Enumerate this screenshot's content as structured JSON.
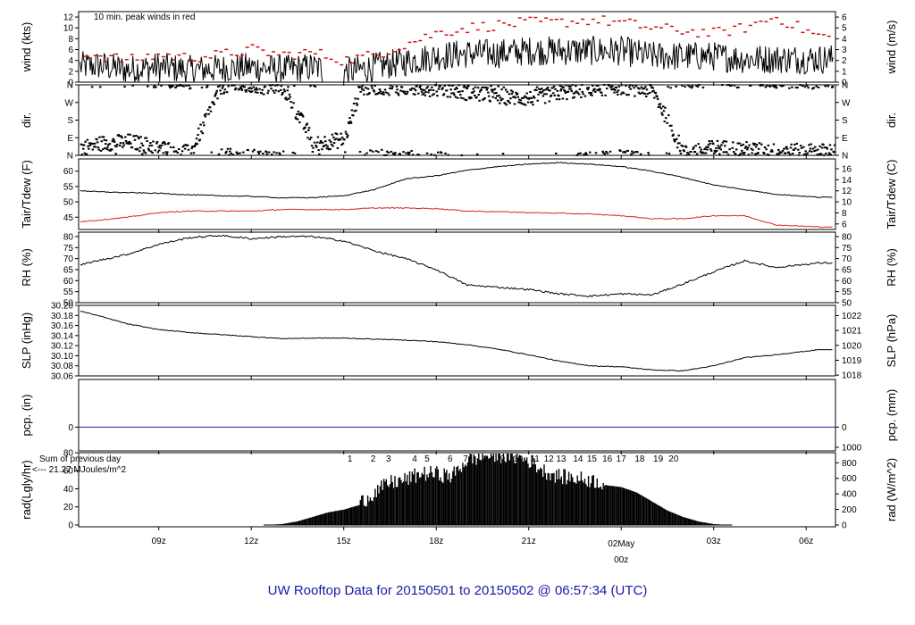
{
  "title": "UW Rooftop Data for 20150501  to  20150502 @ 06:57:34  (UTC)",
  "colors": {
    "frame": "#000000",
    "series": "#000000",
    "dewpoint": "#e02020",
    "peak": "#d01010",
    "precip": "#2020c0",
    "annotation": "#8a2be2",
    "date_marker": "#d01010",
    "footer": "#1a1aa6"
  },
  "chart_data": [
    {
      "type": "line",
      "panel": "wind",
      "ylabel": "wind (kts)",
      "ylabel_right": "wind (m/s)",
      "ylim": [
        0,
        13
      ],
      "yticks": [
        0,
        2,
        4,
        6,
        8,
        10,
        12
      ],
      "yticks_right": [
        0,
        1,
        2,
        3,
        4,
        5,
        6
      ],
      "annotation": "10 min. peak winds in red",
      "series": [
        {
          "name": "",
          "shape": "noisy",
          "x": [
            6,
            7,
            8,
            9,
            10,
            11,
            12,
            13,
            14,
            15,
            16,
            17,
            18,
            19,
            20,
            21,
            22,
            23,
            24,
            25,
            26,
            27,
            28,
            29,
            30.4
          ],
          "values": [
            2.5,
            2.8,
            2.0,
            2.5,
            2.0,
            2.2,
            2.5,
            2.0,
            2.5,
            1.5,
            2.5,
            3.5,
            4.5,
            5.0,
            5.0,
            5.5,
            5.5,
            5.5,
            5.5,
            4.5,
            4.5,
            4.5,
            4.0,
            4.0,
            4.0
          ],
          "amplitude": 2.5
        },
        {
          "name": "",
          "shape": "peaks",
          "x": [
            6,
            7,
            8,
            9,
            10,
            11,
            12,
            13,
            14,
            15,
            16,
            17,
            18,
            19,
            20,
            21,
            22,
            23,
            24,
            25,
            26,
            27,
            28,
            29,
            30.4
          ],
          "values": [
            5.5,
            5.0,
            4.0,
            5.0,
            4.5,
            5.0,
            6.0,
            5.0,
            5.5,
            4.0,
            5.0,
            7.0,
            9.0,
            10.0,
            10.5,
            11.0,
            11.0,
            11.5,
            11.0,
            10.0,
            9.5,
            9.0,
            10.0,
            12.0,
            8.5
          ],
          "amplitude": 1.0
        }
      ]
    },
    {
      "type": "scatter",
      "panel": "dir",
      "ylabel": "dir.",
      "ylabel_right": "dir.",
      "ylim": [
        0,
        360
      ],
      "ytick_labels": [
        "N",
        "E",
        "S",
        "W",
        "N"
      ],
      "yticks": [
        0,
        90,
        180,
        270,
        360
      ],
      "series": [
        {
          "name": "",
          "x": [
            6,
            7,
            8,
            9,
            10,
            11,
            12,
            13,
            14,
            15,
            15.5,
            16,
            17,
            18,
            19,
            20,
            21,
            22,
            23,
            24,
            25,
            26,
            27,
            28,
            29,
            30.4
          ],
          "values": [
            20,
            60,
            70,
            40,
            10,
            355,
            350,
            345,
            60,
            80,
            340,
            350,
            345,
            340,
            320,
            300,
            290,
            320,
            340,
            350,
            330,
            10,
            40,
            30,
            20,
            20
          ],
          "amplitude": 40
        }
      ]
    },
    {
      "type": "line",
      "panel": "temp",
      "ylabel": "Tair/Tdew (F)",
      "ylabel_right": "Tair/Tdew (C)",
      "ylim": [
        41,
        64
      ],
      "yticks": [
        45,
        50,
        55,
        60
      ],
      "yticks_right": [
        6,
        8,
        10,
        12,
        14,
        16
      ],
      "series": [
        {
          "name": "",
          "x": [
            6,
            7,
            8,
            9,
            10,
            11,
            12,
            13,
            14,
            15,
            16,
            17,
            18,
            19,
            20,
            21,
            22,
            23,
            24,
            25,
            26,
            27,
            28,
            29,
            30.4
          ],
          "values": [
            54.0,
            53.3,
            53.0,
            52.8,
            52.3,
            52.0,
            51.8,
            51.3,
            51.4,
            52.0,
            54.0,
            57.5,
            58.5,
            60.3,
            61.5,
            62.3,
            62.8,
            62.3,
            61.5,
            60.0,
            58.0,
            55.5,
            54.0,
            52.5,
            51.5
          ],
          "amplitude": 0.3
        },
        {
          "name": "",
          "x": [
            6,
            7,
            8,
            9,
            10,
            11,
            12,
            13,
            14,
            15,
            16,
            17,
            18,
            19,
            20,
            21,
            22,
            23,
            24,
            25,
            26,
            27,
            28,
            29,
            30.4
          ],
          "values": [
            43.3,
            44.0,
            45.0,
            46.5,
            47.0,
            47.0,
            47.0,
            47.5,
            47.5,
            47.5,
            48.0,
            48.0,
            47.8,
            47.0,
            46.8,
            46.5,
            46.3,
            46.0,
            45.5,
            44.5,
            44.5,
            45.5,
            45.5,
            42.5,
            41.8
          ],
          "amplitude": 0.3
        }
      ]
    },
    {
      "type": "line",
      "panel": "rh",
      "ylabel": "RH (%)",
      "ylabel_right": "RH (%)",
      "ylim": [
        50,
        82
      ],
      "yticks": [
        50,
        55,
        60,
        65,
        70,
        75,
        80
      ],
      "yticks_right": [
        50,
        55,
        60,
        65,
        70,
        75,
        80
      ],
      "series": [
        {
          "name": "",
          "x": [
            6,
            7,
            8,
            9,
            10,
            11,
            12,
            13,
            14,
            15,
            16,
            17,
            18,
            19,
            20,
            21,
            22,
            23,
            24,
            25,
            26,
            27,
            28,
            29,
            30.4
          ],
          "values": [
            65.5,
            69.0,
            72.0,
            76.5,
            79.5,
            80.5,
            79.0,
            80.0,
            80.0,
            78.0,
            73.5,
            70.0,
            65.0,
            58.0,
            57.0,
            56.0,
            54.0,
            53.0,
            54.0,
            53.5,
            58.5,
            64.0,
            69.0,
            66.0,
            68.0
          ],
          "amplitude": 0.8
        }
      ]
    },
    {
      "type": "line",
      "panel": "slp",
      "ylabel": "SLP (inHg)",
      "ylabel_right": "SLP (hPa)",
      "ylim": [
        30.06,
        30.2
      ],
      "yticks": [
        30.06,
        30.08,
        30.1,
        30.12,
        30.14,
        30.16,
        30.18,
        30.2
      ],
      "yticks_right_labels": [
        "1018",
        "1019",
        "1020",
        "1021",
        "1022"
      ],
      "series": [
        {
          "name": "",
          "x": [
            6,
            7,
            8,
            9,
            10,
            11,
            12,
            13,
            14,
            15,
            16,
            17,
            18,
            19,
            20,
            21,
            22,
            23,
            24,
            25,
            26,
            27,
            28,
            29,
            30.4
          ],
          "values": [
            30.196,
            30.18,
            30.163,
            30.152,
            30.146,
            30.142,
            30.138,
            30.134,
            30.135,
            30.135,
            30.133,
            30.131,
            30.128,
            30.122,
            30.113,
            30.102,
            30.089,
            30.08,
            30.078,
            30.072,
            30.07,
            30.08,
            30.096,
            30.102,
            30.112
          ],
          "amplitude": 0.0015
        }
      ]
    },
    {
      "type": "line",
      "panel": "pcp",
      "ylabel": "pcp. (in)",
      "ylabel_right": "pcp. (mm)",
      "ylim": [
        -1,
        2
      ],
      "yticks": [
        0
      ],
      "yticks_right": [
        0
      ],
      "series": [
        {
          "name": "",
          "x": [
            6.5,
            30.4
          ],
          "values": [
            0,
            0
          ]
        }
      ]
    },
    {
      "type": "area",
      "panel": "rad",
      "ylabel": "rad(Lgly/hr)",
      "ylabel_right": "rad (W/m^2)",
      "ylim": [
        -2,
        80
      ],
      "yticks": [
        0,
        20,
        40,
        60,
        80
      ],
      "yticks_right": [
        0,
        200,
        400,
        600,
        800,
        1000
      ],
      "annotation_lines": [
        "Sum of previous day",
        "<--- 21.27 MJoules/m^2"
      ],
      "hour_labels": [
        "1",
        "2",
        "3",
        "4",
        "5",
        "6",
        "7",
        "8",
        "9",
        "10",
        "11",
        "12",
        "13",
        "14",
        "15",
        "16",
        "17",
        "18",
        "19",
        "20"
      ],
      "hour_label_x": [
        15.2,
        15.95,
        16.45,
        17.3,
        17.7,
        18.45,
        18.95,
        19.6,
        20.15,
        20.65,
        21.2,
        21.65,
        22.05,
        22.6,
        23.05,
        23.55,
        24.0,
        24.6,
        25.2,
        25.7
      ],
      "series": [
        {
          "name": "",
          "x": [
            12.5,
            13,
            13.5,
            14,
            14.5,
            15,
            15.5,
            16,
            16.5,
            17,
            17.5,
            18,
            18.5,
            19,
            19.5,
            20,
            20.5,
            21,
            21.5,
            22,
            22.5,
            23,
            23.5,
            24,
            24.5,
            25,
            25.5,
            26,
            26.5,
            27,
            27.5
          ],
          "values": [
            0,
            1,
            4,
            9,
            14,
            17,
            22,
            34,
            45,
            48,
            55,
            55,
            52,
            70,
            74,
            76,
            74,
            70,
            58,
            52,
            50,
            48,
            44,
            42,
            36,
            26,
            16,
            9,
            4,
            1,
            0
          ],
          "amplitude": 8
        }
      ]
    }
  ],
  "x_axis": {
    "tick_labels": [
      "09z",
      "12z",
      "15z",
      "18z",
      "21z",
      "00z",
      "03z",
      "06z"
    ],
    "tick_values": [
      9,
      12,
      15,
      18,
      21,
      24,
      27,
      30
    ],
    "date_label": "02May",
    "date_tick_value": 24,
    "xlim": [
      6.4,
      30.95
    ]
  }
}
